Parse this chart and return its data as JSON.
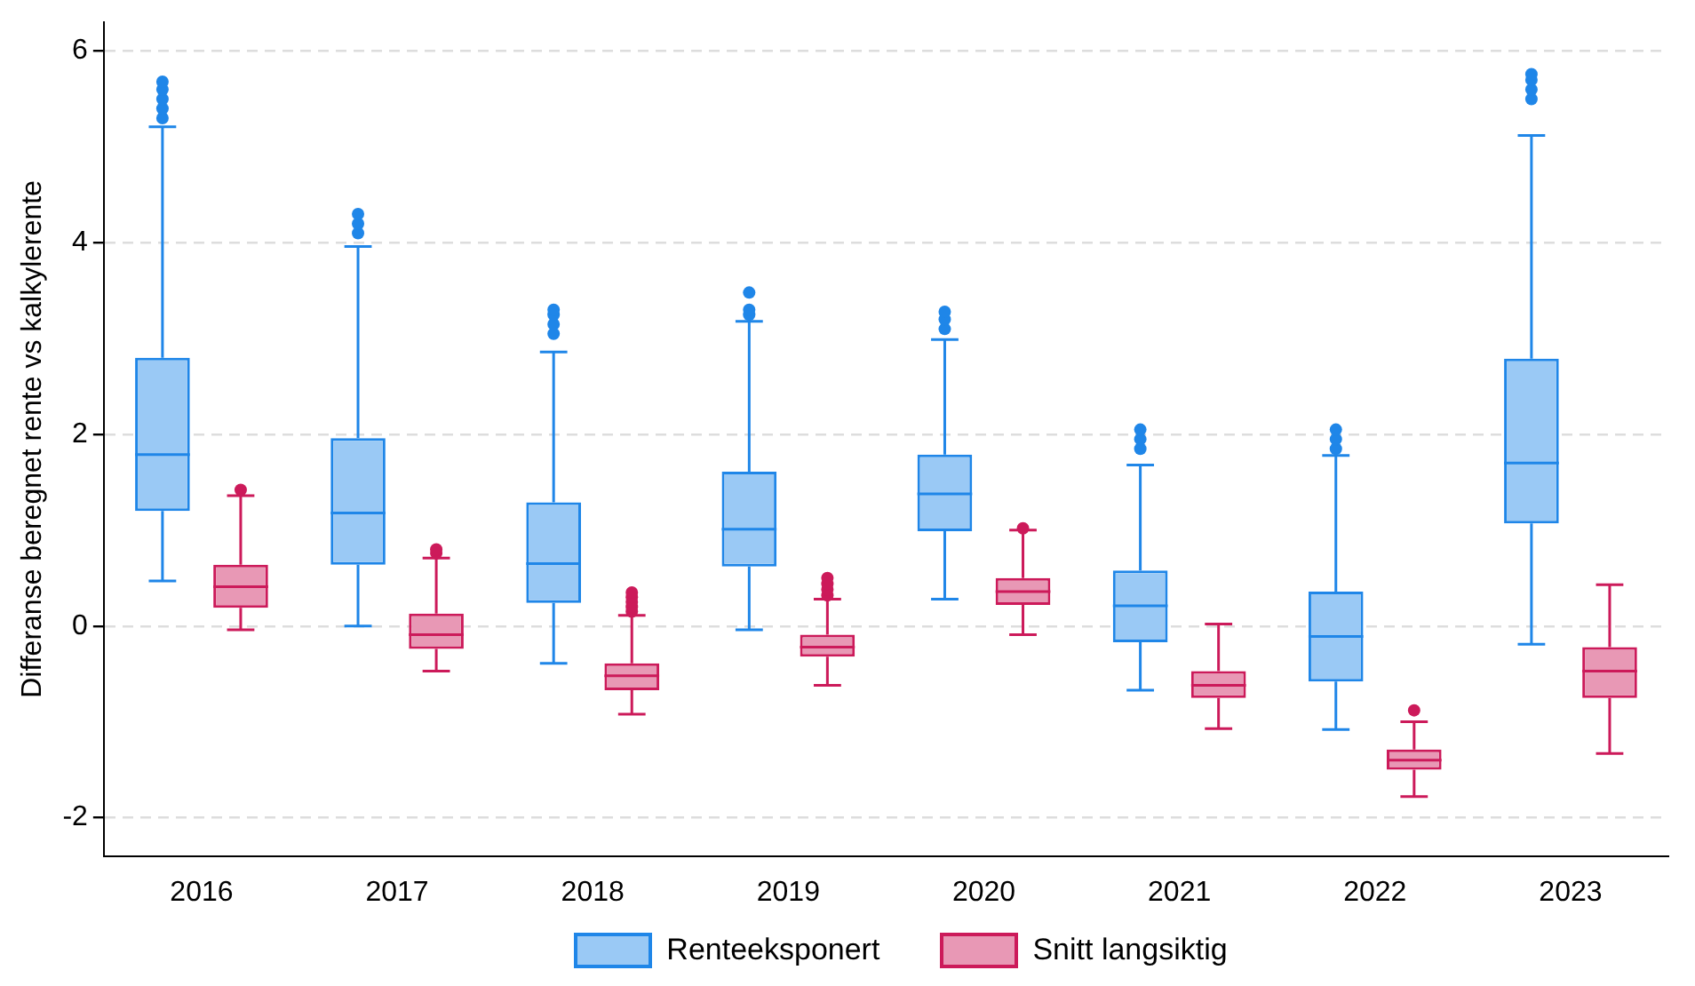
{
  "chart_data": {
    "type": "box",
    "ylabel": "Differanse beregnet rente vs kalkylerente",
    "categories": [
      "2016",
      "2017",
      "2018",
      "2019",
      "2020",
      "2021",
      "2022",
      "2023"
    ],
    "ylim": [
      -2.4,
      6.3
    ],
    "yticks": [
      -2,
      0,
      2,
      4,
      6
    ],
    "grid": "y",
    "legend": "bottom",
    "marker": "circle",
    "series": [
      {
        "name": "Renteeksponert",
        "color": "#1f86e8",
        "boxes": [
          {
            "low": 0.47,
            "q1": 1.2,
            "median": 1.79,
            "q3": 2.8,
            "high": 5.21,
            "outliers": [
              5.3,
              5.4,
              5.5,
              5.6,
              5.68
            ]
          },
          {
            "low": 0.0,
            "q1": 0.64,
            "median": 1.18,
            "q3": 1.96,
            "high": 3.96,
            "outliers": [
              4.1,
              4.2,
              4.3
            ]
          },
          {
            "low": -0.39,
            "q1": 0.24,
            "median": 0.65,
            "q3": 1.29,
            "high": 2.86,
            "outliers": [
              3.05,
              3.15,
              3.25,
              3.3
            ]
          },
          {
            "low": -0.04,
            "q1": 0.62,
            "median": 1.01,
            "q3": 1.61,
            "high": 3.18,
            "outliers": [
              3.25,
              3.3,
              3.48
            ]
          },
          {
            "low": 0.28,
            "q1": 0.99,
            "median": 1.38,
            "q3": 1.79,
            "high": 2.99,
            "outliers": [
              3.1,
              3.2,
              3.28
            ]
          },
          {
            "low": -0.67,
            "q1": -0.17,
            "median": 0.21,
            "q3": 0.58,
            "high": 1.68,
            "outliers": [
              1.85,
              1.95,
              2.05
            ]
          },
          {
            "low": -1.08,
            "q1": -0.58,
            "median": -0.11,
            "q3": 0.36,
            "high": 1.78,
            "outliers": [
              1.85,
              1.95,
              2.05
            ]
          },
          {
            "low": -0.19,
            "q1": 1.07,
            "median": 1.7,
            "q3": 2.79,
            "high": 5.12,
            "outliers": [
              5.5,
              5.6,
              5.7,
              5.76
            ]
          }
        ]
      },
      {
        "name": "Snitt langsiktig",
        "color": "#cc1a5a",
        "boxes": [
          {
            "low": -0.04,
            "q1": 0.19,
            "median": 0.41,
            "q3": 0.64,
            "high": 1.36,
            "outliers": [
              1.42
            ]
          },
          {
            "low": -0.47,
            "q1": -0.24,
            "median": -0.09,
            "q3": 0.13,
            "high": 0.71,
            "outliers": [
              0.76,
              0.8
            ]
          },
          {
            "low": -0.92,
            "q1": -0.67,
            "median": -0.52,
            "q3": -0.39,
            "high": 0.11,
            "outliers": [
              0.15,
              0.2,
              0.25,
              0.3,
              0.35
            ]
          },
          {
            "low": -0.62,
            "q1": -0.32,
            "median": -0.22,
            "q3": -0.09,
            "high": 0.28,
            "outliers": [
              0.32,
              0.38,
              0.44,
              0.5
            ]
          },
          {
            "low": -0.09,
            "q1": 0.22,
            "median": 0.36,
            "q3": 0.5,
            "high": 1.0,
            "outliers": [
              1.02
            ]
          },
          {
            "low": -1.07,
            "q1": -0.75,
            "median": -0.62,
            "q3": -0.47,
            "high": 0.02
          },
          {
            "low": -1.78,
            "q1": -1.5,
            "median": -1.4,
            "q3": -1.29,
            "high": -1.0,
            "outliers": [
              -0.88
            ]
          },
          {
            "low": -1.33,
            "q1": -0.75,
            "median": -0.47,
            "q3": -0.22,
            "high": 0.43
          }
        ]
      }
    ]
  }
}
